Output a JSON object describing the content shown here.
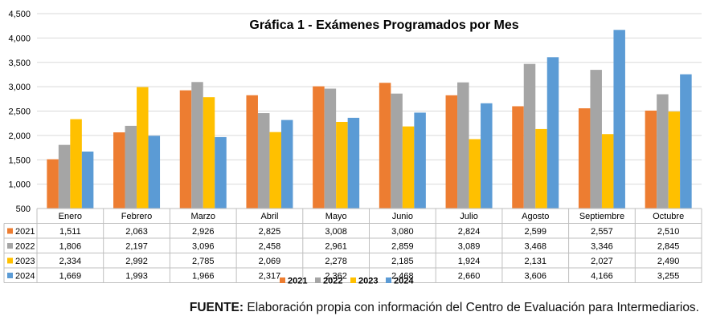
{
  "chart_data": {
    "type": "bar",
    "title": "Gráfica 1 - Exámenes Programados por Mes",
    "categories": [
      "Enero",
      "Febrero",
      "Marzo",
      "Abril",
      "Mayo",
      "Junio",
      "Julio",
      "Agosto",
      "Septiembre",
      "Octubre"
    ],
    "series": [
      {
        "name": "2021",
        "color": "#ed7d31",
        "values": [
          1511,
          2063,
          2926,
          2825,
          3008,
          3080,
          2824,
          2599,
          2557,
          2510
        ],
        "labels": [
          "1,511",
          "2,063",
          "2,926",
          "2,825",
          "3,008",
          "3,080",
          "2,824",
          "2,599",
          "2,557",
          "2,510"
        ]
      },
      {
        "name": "2022",
        "color": "#a5a5a5",
        "values": [
          1806,
          2197,
          3096,
          2458,
          2961,
          2859,
          3089,
          3468,
          3346,
          2845
        ],
        "labels": [
          "1,806",
          "2,197",
          "3,096",
          "2,458",
          "2,961",
          "2,859",
          "3,089",
          "3,468",
          "3,346",
          "2,845"
        ]
      },
      {
        "name": "2023",
        "color": "#ffc000",
        "values": [
          2334,
          2992,
          2785,
          2069,
          2278,
          2185,
          1924,
          2131,
          2027,
          2490
        ],
        "labels": [
          "2,334",
          "2,992",
          "2,785",
          "2,069",
          "2,278",
          "2,185",
          "1,924",
          "2,131",
          "2,027",
          "2,490"
        ]
      },
      {
        "name": "2024",
        "color": "#5b9bd5",
        "values": [
          1669,
          1993,
          1966,
          2317,
          2362,
          2468,
          2660,
          3606,
          4166,
          3255
        ],
        "labels": [
          "1,669",
          "1,993",
          "1,966",
          "2,317",
          "2,362",
          "2,468",
          "2,660",
          "3,606",
          "4,166",
          "3,255"
        ]
      }
    ],
    "ylim": [
      500,
      4500
    ],
    "yticks": [
      500,
      1000,
      1500,
      2000,
      2500,
      3000,
      3500,
      4000,
      4500
    ],
    "ytick_labels": [
      "500",
      "1,000",
      "1,500",
      "2,000",
      "2,500",
      "3,000",
      "3,500",
      "4,000",
      "4,500"
    ],
    "grid": true,
    "legend_position": "bottom",
    "xlabel": "",
    "ylabel": ""
  },
  "source": {
    "label": "FUENTE:",
    "text": " Elaboración propia con información del Centro de Evaluación para Intermediarios."
  }
}
